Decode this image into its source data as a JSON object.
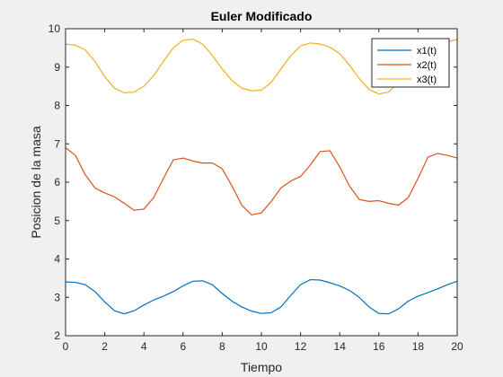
{
  "chart_data": {
    "type": "line",
    "title": "Euler Modificado",
    "xlabel": "Tiempo",
    "ylabel": "Posicion de la masa",
    "xlim": [
      0,
      20
    ],
    "ylim": [
      2,
      10
    ],
    "xticks": [
      0,
      2,
      4,
      6,
      8,
      10,
      12,
      14,
      16,
      18,
      20
    ],
    "yticks": [
      2,
      3,
      4,
      5,
      6,
      7,
      8,
      9,
      10
    ],
    "grid": false,
    "legend_position": "top-right",
    "series": [
      {
        "name": "x1(t)",
        "color": "#0072BD",
        "x": [
          0,
          0.5,
          1,
          1.5,
          2,
          2.5,
          3,
          3.5,
          4,
          4.5,
          5,
          5.5,
          6,
          6.5,
          7,
          7.5,
          8,
          8.5,
          9,
          9.5,
          10,
          10.5,
          11,
          11.5,
          12,
          12.5,
          13,
          13.5,
          14,
          14.5,
          15,
          15.5,
          16,
          16.5,
          17,
          17.5,
          18,
          18.5,
          19,
          19.5,
          20
        ],
        "y": [
          3.4,
          3.39,
          3.33,
          3.15,
          2.88,
          2.65,
          2.57,
          2.65,
          2.8,
          2.93,
          3.03,
          3.15,
          3.3,
          3.42,
          3.43,
          3.33,
          3.1,
          2.9,
          2.75,
          2.64,
          2.58,
          2.6,
          2.75,
          3.05,
          3.33,
          3.46,
          3.45,
          3.38,
          3.3,
          3.18,
          3.0,
          2.75,
          2.58,
          2.57,
          2.7,
          2.9,
          3.03,
          3.12,
          3.22,
          3.33,
          3.42
        ]
      },
      {
        "name": "x2(t)",
        "color": "#D95319",
        "x": [
          0,
          0.5,
          1,
          1.5,
          2,
          2.5,
          3,
          3.5,
          4,
          4.5,
          5,
          5.5,
          6,
          6.5,
          7,
          7.5,
          8,
          8.5,
          9,
          9.5,
          10,
          10.5,
          11,
          11.5,
          12,
          12.5,
          13,
          13.5,
          14,
          14.5,
          15,
          15.5,
          16,
          16.5,
          17,
          17.5,
          18,
          18.5,
          19,
          19.5,
          20
        ],
        "y": [
          6.9,
          6.7,
          6.2,
          5.85,
          5.72,
          5.62,
          5.45,
          5.27,
          5.3,
          5.6,
          6.1,
          6.58,
          6.63,
          6.55,
          6.5,
          6.5,
          6.35,
          5.9,
          5.4,
          5.15,
          5.2,
          5.5,
          5.85,
          6.03,
          6.15,
          6.45,
          6.8,
          6.82,
          6.4,
          5.9,
          5.55,
          5.5,
          5.52,
          5.45,
          5.4,
          5.6,
          6.1,
          6.65,
          6.75,
          6.7,
          6.63
        ]
      },
      {
        "name": "x3(t)",
        "color": "#EDB120",
        "x": [
          0,
          0.5,
          1,
          1.5,
          2,
          2.5,
          3,
          3.5,
          4,
          4.5,
          5,
          5.5,
          6,
          6.5,
          7,
          7.5,
          8,
          8.5,
          9,
          9.5,
          10,
          10.5,
          11,
          11.5,
          12,
          12.5,
          13,
          13.5,
          14,
          14.5,
          15,
          15.5,
          16,
          16.5,
          17,
          17.5,
          18,
          18.5,
          19,
          19.5,
          20
        ],
        "y": [
          9.6,
          9.57,
          9.45,
          9.15,
          8.75,
          8.45,
          8.33,
          8.35,
          8.5,
          8.78,
          9.15,
          9.5,
          9.7,
          9.73,
          9.6,
          9.3,
          8.95,
          8.65,
          8.45,
          8.38,
          8.4,
          8.6,
          8.95,
          9.3,
          9.55,
          9.63,
          9.6,
          9.52,
          9.35,
          9.05,
          8.7,
          8.42,
          8.3,
          8.35,
          8.6,
          8.95,
          9.3,
          9.55,
          9.63,
          9.66,
          9.72
        ]
      }
    ]
  }
}
